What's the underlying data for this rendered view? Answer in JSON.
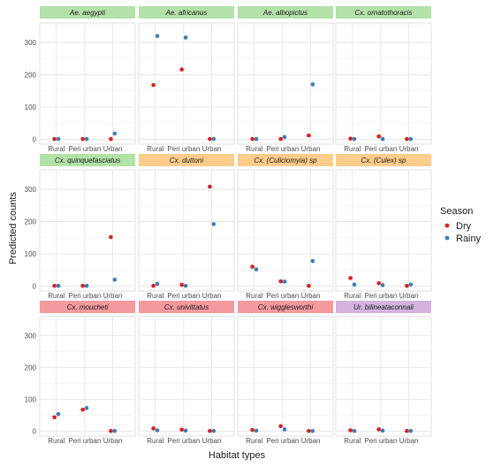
{
  "chart_data": {
    "type": "scatter",
    "xlabel": "Habitat types",
    "ylabel": "Predicted counts",
    "categories": [
      "Rural",
      "Peri urban",
      "Urban"
    ],
    "ylim": [
      -15,
      360
    ],
    "yticks": [
      0,
      100,
      200,
      300
    ],
    "grid": true,
    "legend": {
      "title": "Season",
      "position": "right",
      "entries": [
        {
          "name": "Dry",
          "color": "#e41a1c"
        },
        {
          "name": "Rainy",
          "color": "#377eb8"
        }
      ]
    },
    "strip_colors": {
      "green": "#b3e2a8",
      "orange": "#fdcb8a",
      "red": "#f4999d",
      "purple": "#d4b3e0"
    },
    "panels": [
      {
        "title": "Ae. aegypti",
        "strip": "green",
        "dry": [
          1,
          1,
          1
        ],
        "rainy": [
          1,
          1,
          18
        ]
      },
      {
        "title": "Ae. africanus",
        "strip": "green",
        "dry": [
          168,
          216,
          1
        ],
        "rainy": [
          320,
          315,
          1
        ]
      },
      {
        "title": "Ae. albopictus",
        "strip": "green",
        "dry": [
          1,
          1,
          12
        ],
        "rainy": [
          1,
          7,
          170
        ]
      },
      {
        "title": "Cx. ornatothoracis",
        "strip": "green",
        "dry": [
          2,
          9,
          1
        ],
        "rainy": [
          1,
          1,
          1
        ]
      },
      {
        "title": "Cx. quinquefasciatus",
        "strip": "green",
        "dry": [
          1,
          1,
          152
        ],
        "rainy": [
          1,
          1,
          20
        ]
      },
      {
        "title": "Cx. duttoni",
        "strip": "orange",
        "dry": [
          1,
          4,
          308
        ],
        "rainy": [
          7,
          1,
          192
        ]
      },
      {
        "title": "Cx. (Culiciomyia) sp",
        "strip": "orange",
        "dry": [
          60,
          15,
          1
        ],
        "rainy": [
          52,
          14,
          78
        ]
      },
      {
        "title": "Cx. (Culex) sp",
        "strip": "orange",
        "dry": [
          25,
          9,
          1
        ],
        "rainy": [
          5,
          3,
          5
        ]
      },
      {
        "title": "Cx. moucheti",
        "strip": "red",
        "dry": [
          44,
          68,
          1
        ],
        "rainy": [
          54,
          73,
          1
        ]
      },
      {
        "title": "Cx. univittatus",
        "strip": "red",
        "dry": [
          9,
          5,
          1
        ],
        "rainy": [
          3,
          2,
          1
        ]
      },
      {
        "title": "Cx. wigglesworthi",
        "strip": "red",
        "dry": [
          4,
          16,
          1
        ],
        "rainy": [
          2,
          6,
          1
        ]
      },
      {
        "title": "Ur. bilineataconnali",
        "strip": "purple",
        "dry": [
          3,
          6,
          1
        ],
        "rainy": [
          1,
          2,
          1
        ]
      }
    ]
  }
}
